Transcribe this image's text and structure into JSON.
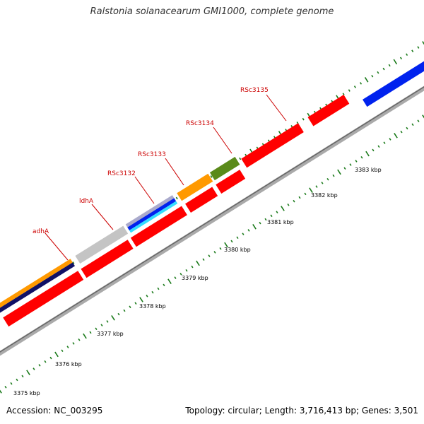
{
  "title": "Ralstonia solanacearum GMI1000, complete genome",
  "footer": {
    "accession": "Accession: NC_003295",
    "stats": "Topology: circular; Length: 3,716,413 bp; Genes: 3,501"
  },
  "scale": {
    "kbp_labels": [
      "3375 kbp",
      "3376 kbp",
      "3377 kbp",
      "3378 kbp",
      "3379 kbp",
      "3380 kbp",
      "3381 kbp",
      "3382 kbp",
      "3383 kbp"
    ]
  },
  "gene_labels": [
    "adhA",
    "ldhA",
    "RSc3132",
    "RSc3133",
    "RSc3134",
    "RSc3135"
  ],
  "colors": {
    "label": "#cc0000",
    "backbone": "#888888",
    "tick": "#1a7a1a",
    "red_feature": "#ff0000",
    "blue_feature": "#0022ee",
    "orange_feature": "#ff9900",
    "olive_feature": "#5a8a1a",
    "grey_feature": "#c4c4c4",
    "navy_feature": "#101066",
    "cyan_feature": "#33ddff"
  }
}
